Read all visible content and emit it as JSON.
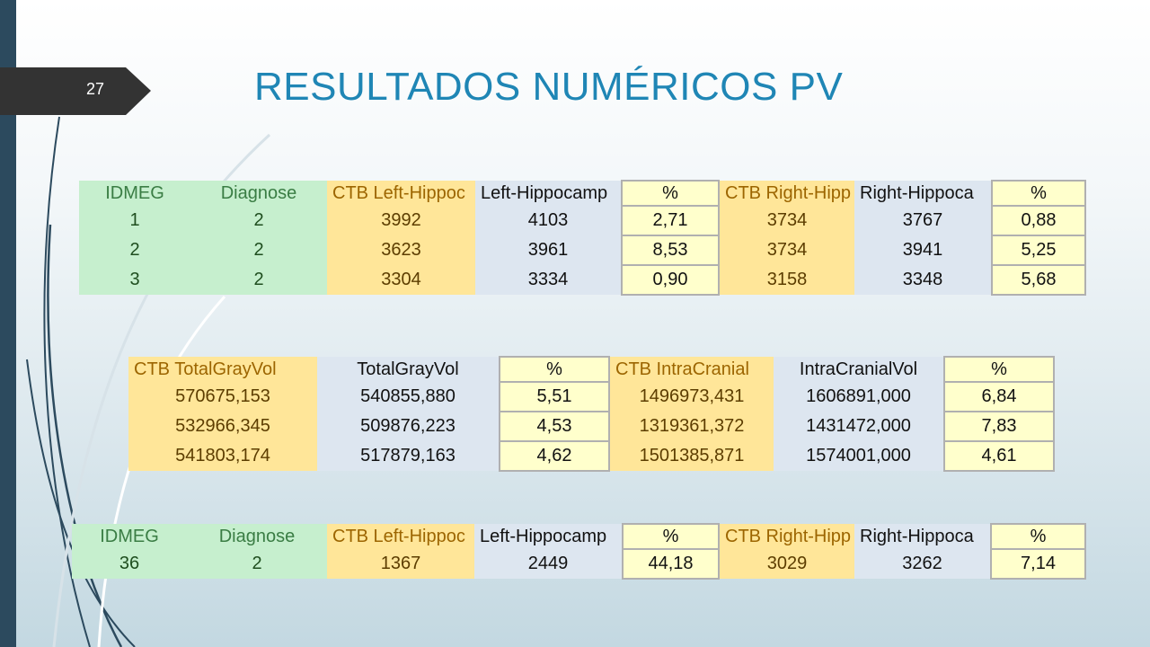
{
  "slide": {
    "number": "27",
    "title": "RESULTADOS NUMÉRICOS PV"
  },
  "table1": {
    "headers": [
      "IDMEG",
      "Diagnose",
      "CTB Left-Hippoc",
      "Left-Hippocamp",
      "%",
      "CTB Right-Hipp",
      "Right-Hippoca",
      "%"
    ],
    "rows": [
      [
        "1",
        "2",
        "3992",
        "4103",
        "2,71",
        "3734",
        "3767",
        "0,88"
      ],
      [
        "2",
        "2",
        "3623",
        "3961",
        "8,53",
        "3734",
        "3941",
        "5,25"
      ],
      [
        "3",
        "2",
        "3304",
        "3334",
        "0,90",
        "3158",
        "3348",
        "5,68"
      ]
    ]
  },
  "table2": {
    "headers": [
      "CTB TotalGrayVol",
      "TotalGrayVol",
      "%",
      "CTB IntraCranial",
      "IntraCranialVol",
      "%"
    ],
    "rows": [
      [
        "570675,153",
        "540855,880",
        "5,51",
        "1496973,431",
        "1606891,000",
        "6,84"
      ],
      [
        "532966,345",
        "509876,223",
        "4,53",
        "1319361,372",
        "1431472,000",
        "7,83"
      ],
      [
        "541803,174",
        "517879,163",
        "4,62",
        "1501385,871",
        "1574001,000",
        "4,61"
      ]
    ]
  },
  "table3": {
    "headers": [
      "IDMEG",
      "Diagnose",
      "CTB Left-Hippoc",
      "Left-Hippocamp",
      "%",
      "CTB Right-Hipp",
      "Right-Hippoca",
      "%"
    ],
    "rows": [
      [
        "36",
        "2",
        "1367",
        "2449",
        "44,18",
        "3029",
        "3262",
        "7,14"
      ]
    ]
  },
  "colors": {
    "title": "#1f86b5",
    "left_bar": "#2c4a5e",
    "green_cell": "#c6efce",
    "orange_cell": "#ffe699",
    "blue_cell": "#dde6f0",
    "yellow_cell": "#ffffcc"
  }
}
